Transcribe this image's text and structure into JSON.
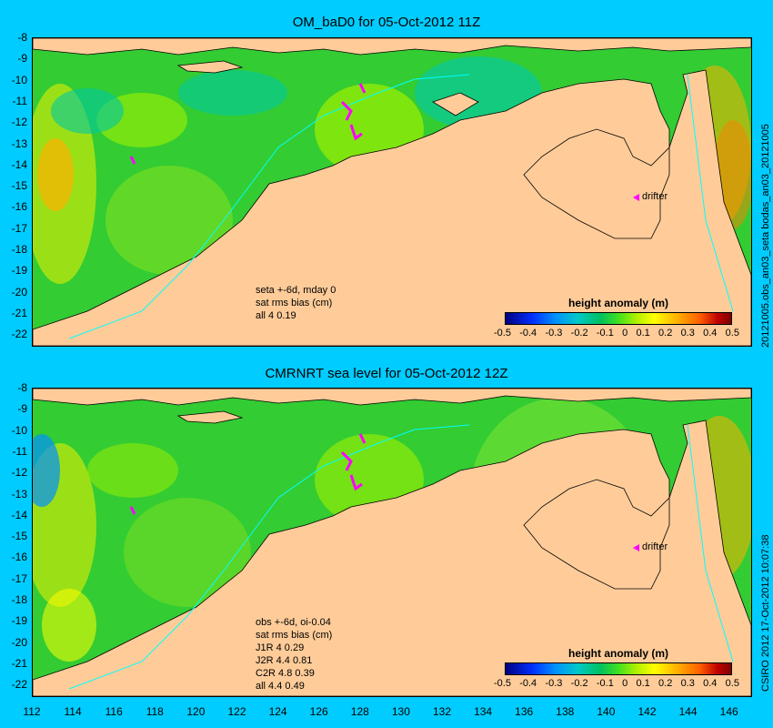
{
  "top": {
    "title": "OM_baD0 for 05-Oct-2012 11Z",
    "side_label": "20121005.obs_an03_seta    bodas_an03_20121005",
    "yticks": [
      "-8",
      "-9",
      "-10",
      "-11",
      "-12",
      "-13",
      "-14",
      "-15",
      "-16",
      "-17",
      "-18",
      "-19",
      "-20",
      "-21",
      "-22"
    ],
    "notes": [
      "seta +-6d, mday 0",
      "sat rms bias (cm)",
      "all 4 0.19"
    ],
    "colorbar_title": "height anomaly (m)",
    "colorbar_ticks": [
      "-0.5",
      "-0.4",
      "-0.3",
      "-0.2",
      "-0.1",
      "0",
      "0.1",
      "0.2",
      "0.3",
      "0.4",
      "0.5"
    ],
    "drifter": "drifter"
  },
  "bottom": {
    "title": "CMRNRT sea level  for 05-Oct-2012 12Z",
    "side_label": "CSIRO 2012   17-Oct-2012 10:07:38",
    "yticks": [
      "-8",
      "-9",
      "-10",
      "-11",
      "-12",
      "-13",
      "-14",
      "-15",
      "-16",
      "-17",
      "-18",
      "-19",
      "-20",
      "-21",
      "-22"
    ],
    "notes": [
      "obs +-6d, oi-0.04",
      "sat rms bias (cm)",
      "J1R   4 0.29",
      "J2R   4.4 0.81",
      "C2R   4.8 0.39",
      "all 4.4 0.49"
    ],
    "colorbar_title": "height anomaly (m)",
    "colorbar_ticks": [
      "-0.5",
      "-0.4",
      "-0.3",
      "-0.2",
      "-0.1",
      "0",
      "0.1",
      "0.2",
      "0.3",
      "0.4",
      "0.5"
    ],
    "drifter": "drifter"
  },
  "xticks": [
    "112",
    "114",
    "116",
    "118",
    "120",
    "122",
    "124",
    "126",
    "128",
    "130",
    "132",
    "134",
    "136",
    "138",
    "140",
    "142",
    "144",
    "146"
  ],
  "colors": {
    "land": "#ffcc99",
    "ocean_green": "#33cc33",
    "background": "#00ccff",
    "drifter": "#ff00ff"
  }
}
